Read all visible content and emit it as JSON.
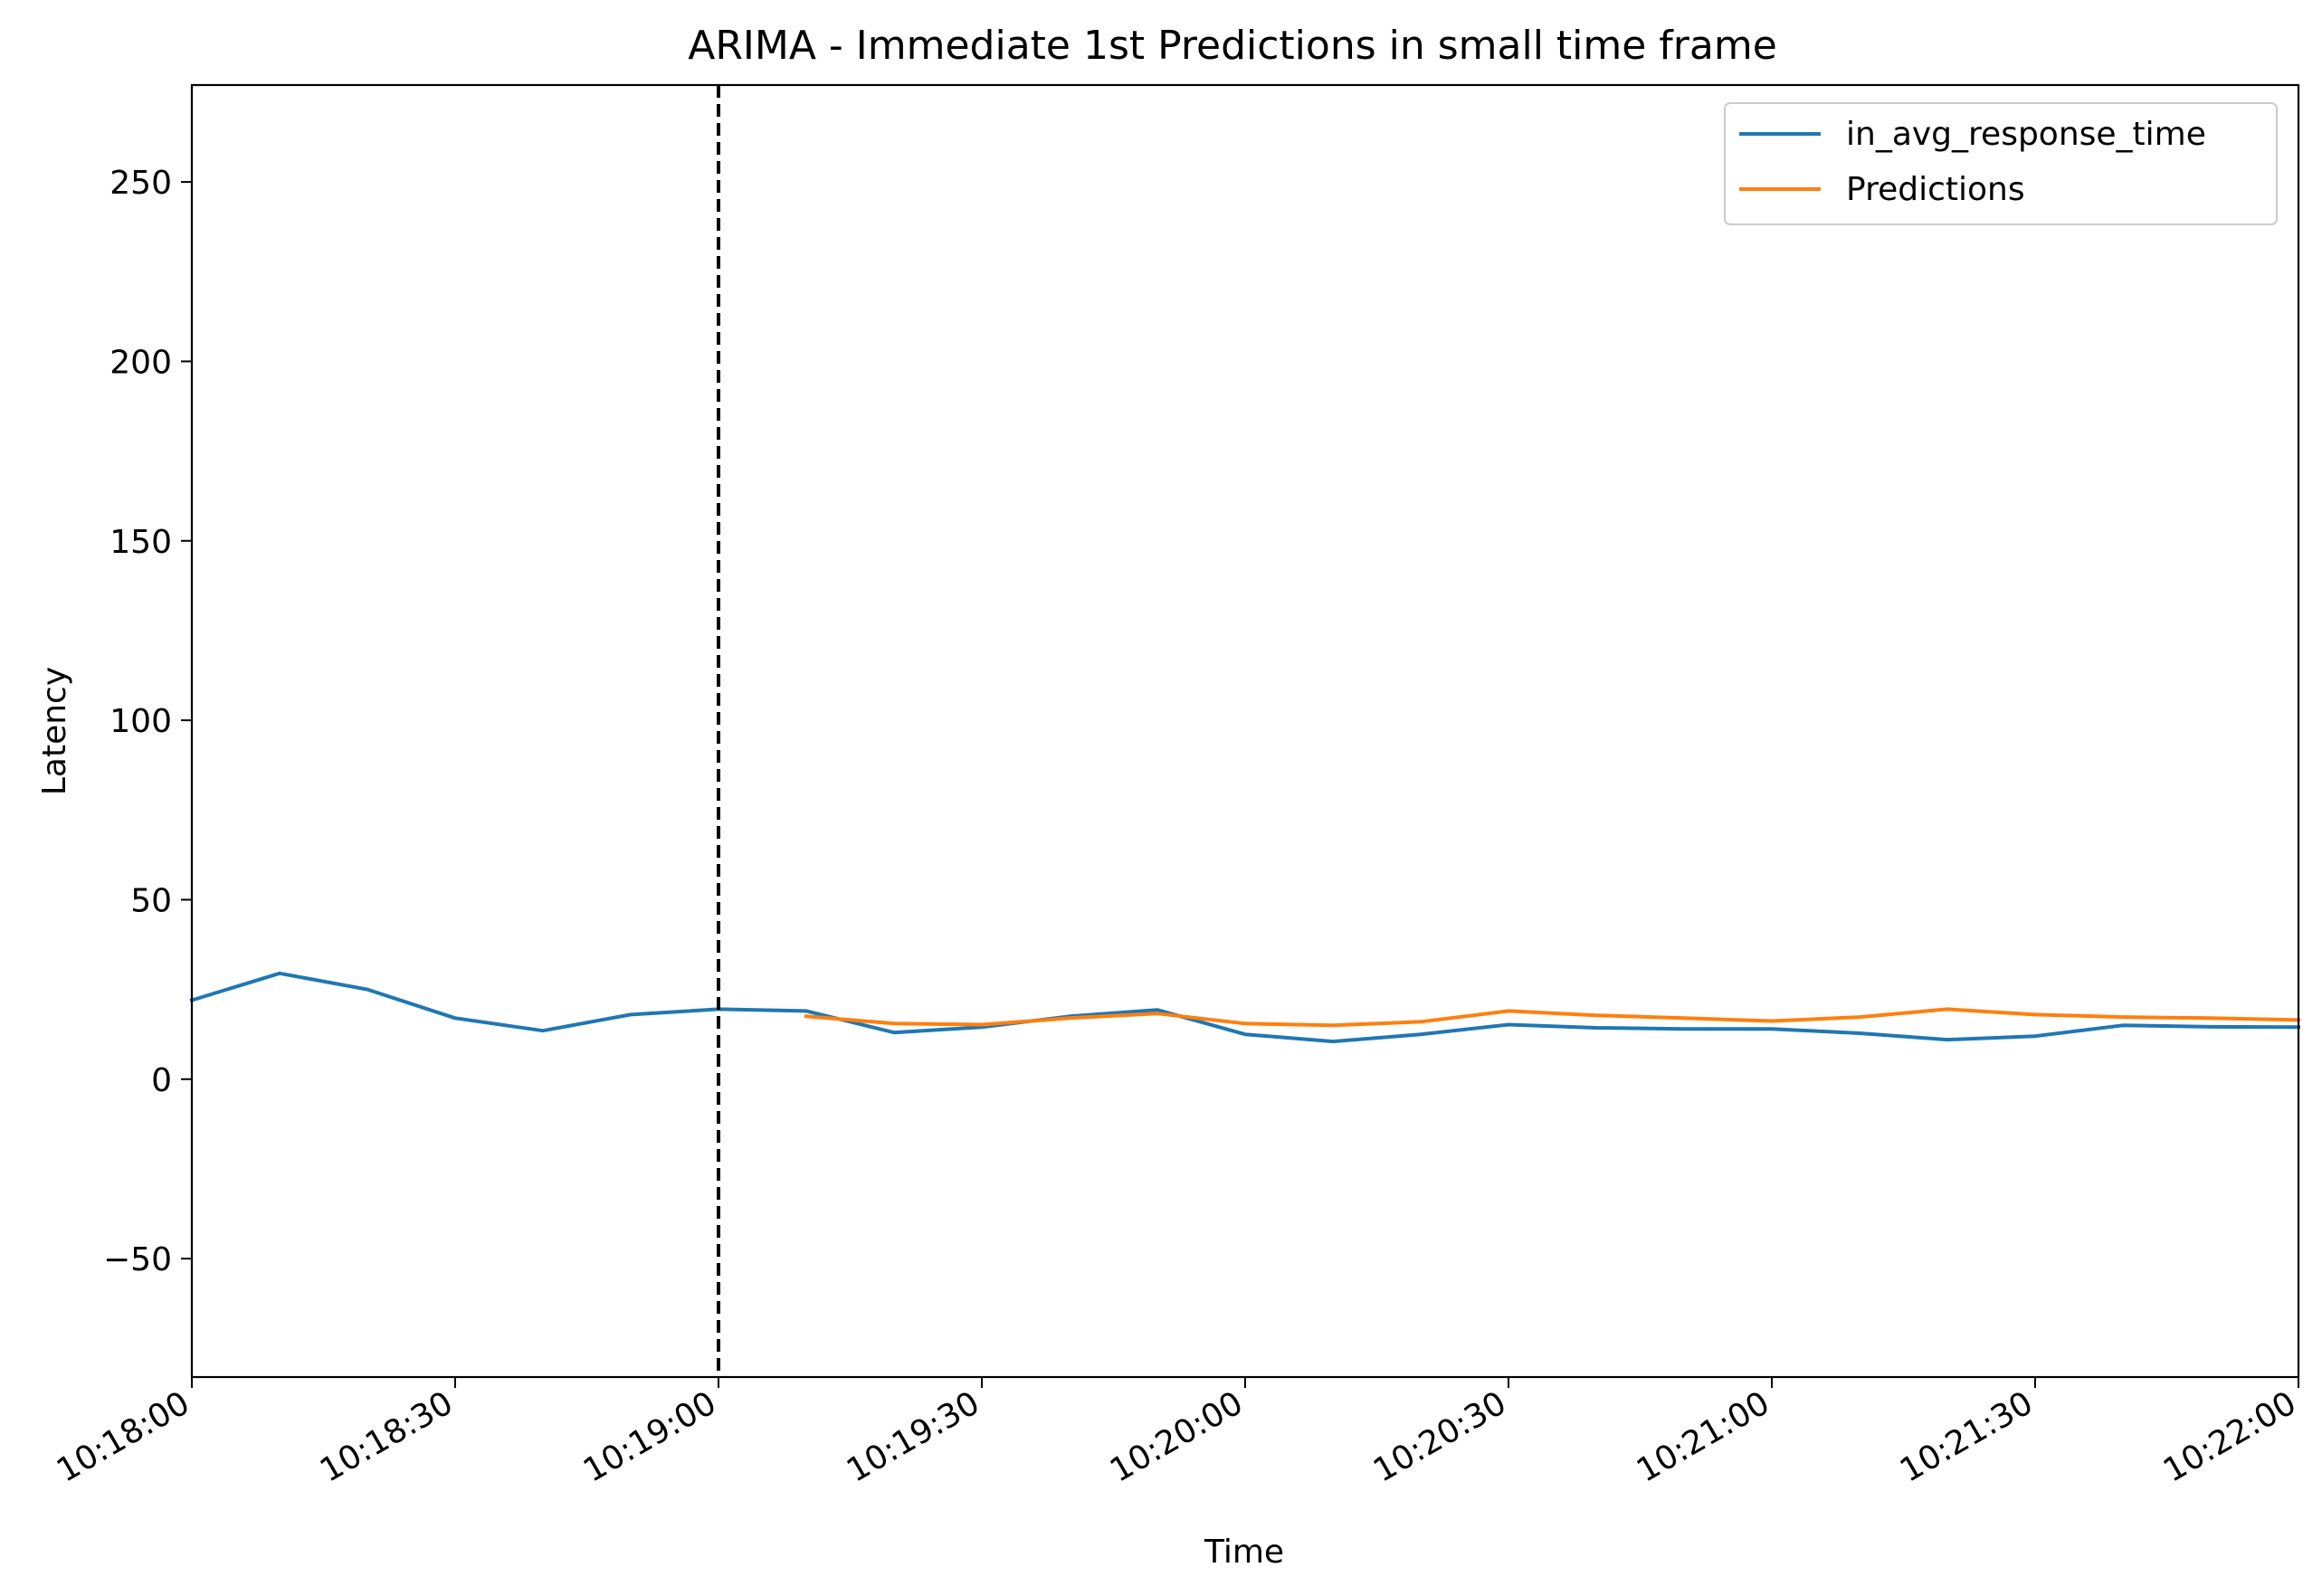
{
  "chart_data": {
    "type": "line",
    "title": "ARIMA - Immediate 1st Predictions in small time frame",
    "xlabel": "Time",
    "ylabel": "Latency",
    "xlim": [
      "10:18:00",
      "10:22:00"
    ],
    "ylim": [
      -83,
      277
    ],
    "x_ticks": [
      "10:18:00",
      "10:18:30",
      "10:19:00",
      "10:19:30",
      "10:20:00",
      "10:20:30",
      "10:21:00",
      "10:21:30",
      "10:22:00"
    ],
    "y_ticks": [
      -50,
      0,
      50,
      100,
      150,
      200,
      250
    ],
    "y_tick_labels": [
      "−50",
      "0",
      "50",
      "100",
      "150",
      "200",
      "250"
    ],
    "grid": false,
    "legend_position": "top-right",
    "vline": {
      "x": "10:19:00",
      "style": "dashed",
      "color": "#000000"
    },
    "series": [
      {
        "name": "in_avg_response_time",
        "color": "#1f77b4",
        "points": [
          [
            "10:18:00",
            22
          ],
          [
            "10:18:10",
            29.5
          ],
          [
            "10:18:20",
            25
          ],
          [
            "10:18:30",
            17
          ],
          [
            "10:18:40",
            13.5
          ],
          [
            "10:18:50",
            18
          ],
          [
            "10:19:00",
            19.5
          ],
          [
            "10:19:10",
            19
          ],
          [
            "10:19:20",
            13
          ],
          [
            "10:19:30",
            14.5
          ],
          [
            "10:19:40",
            17.5
          ],
          [
            "10:19:50",
            19.3
          ],
          [
            "10:20:00",
            12.5
          ],
          [
            "10:20:10",
            10.5
          ],
          [
            "10:20:20",
            12.5
          ],
          [
            "10:20:30",
            15.2
          ],
          [
            "10:20:40",
            14.3
          ],
          [
            "10:20:50",
            14
          ],
          [
            "10:21:00",
            14
          ],
          [
            "10:21:10",
            12.8
          ],
          [
            "10:21:20",
            11
          ],
          [
            "10:21:30",
            12
          ],
          [
            "10:21:40",
            15
          ],
          [
            "10:21:50",
            14.6
          ],
          [
            "10:22:00",
            14.5
          ]
        ]
      },
      {
        "name": "Predictions",
        "color": "#ff7f0e",
        "points": [
          [
            "10:19:10",
            17.5
          ],
          [
            "10:19:20",
            15.5
          ],
          [
            "10:19:30",
            15.2
          ],
          [
            "10:19:40",
            17
          ],
          [
            "10:19:50",
            18.3
          ],
          [
            "10:20:00",
            15.5
          ],
          [
            "10:20:10",
            15
          ],
          [
            "10:20:20",
            16
          ],
          [
            "10:20:30",
            19
          ],
          [
            "10:20:40",
            17.8
          ],
          [
            "10:20:50",
            17
          ],
          [
            "10:21:00",
            16.2
          ],
          [
            "10:21:10",
            17.3
          ],
          [
            "10:21:20",
            19.5
          ],
          [
            "10:21:30",
            18
          ],
          [
            "10:21:40",
            17.3
          ],
          [
            "10:21:50",
            17
          ],
          [
            "10:22:00",
            16.5
          ]
        ]
      }
    ]
  }
}
